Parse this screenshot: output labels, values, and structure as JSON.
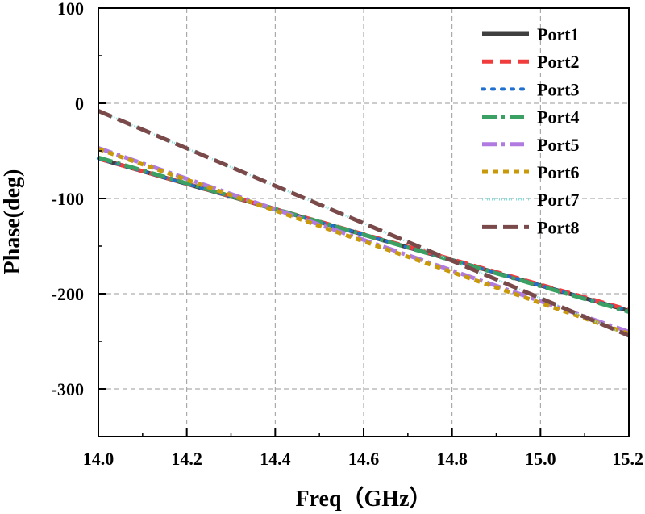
{
  "chart_data": {
    "type": "line",
    "title": "",
    "xlabel": "Freq（GHz）",
    "ylabel": "Phase(deg)",
    "xlim": [
      14.0,
      15.2
    ],
    "ylim": [
      -350,
      100
    ],
    "xticks": [
      14.0,
      14.2,
      14.4,
      14.6,
      14.8,
      15.0,
      15.2
    ],
    "xtick_labels": [
      "14.0",
      "14.2",
      "14.4",
      "14.6",
      "14.8",
      "15.0",
      "15.2"
    ],
    "yticks": [
      100,
      0,
      -100,
      -200,
      -300
    ],
    "ytick_labels": [
      "100",
      "0",
      "-100",
      "-200",
      "-300"
    ],
    "grid": true,
    "legend_position": "top-right",
    "series": [
      {
        "name": "Port1",
        "color": "#404040",
        "dash": "solid",
        "x": [
          14.0,
          15.2
        ],
        "y": [
          -58,
          -218
        ]
      },
      {
        "name": "Port2",
        "color": "#f03c3c",
        "dash": "dash",
        "x": [
          14.0,
          15.2
        ],
        "y": [
          -58,
          -217
        ]
      },
      {
        "name": "Port3",
        "color": "#1f6fd0",
        "dash": "dot",
        "x": [
          14.0,
          15.2
        ],
        "y": [
          -58,
          -218
        ]
      },
      {
        "name": "Port4",
        "color": "#3aa064",
        "dash": "dashdot",
        "x": [
          14.0,
          15.2
        ],
        "y": [
          -57,
          -219
        ]
      },
      {
        "name": "Port5",
        "color": "#b07ae0",
        "dash": "dashdot",
        "x": [
          14.0,
          15.2
        ],
        "y": [
          -47,
          -240
        ]
      },
      {
        "name": "Port6",
        "color": "#c89a0a",
        "dash": "shortdash",
        "x": [
          14.0,
          15.2
        ],
        "y": [
          -48,
          -242
        ]
      },
      {
        "name": "Port7",
        "color": "#7ee0dc",
        "dash": "finedot",
        "x": [
          14.0,
          15.2
        ],
        "y": [
          -8,
          -244
        ]
      },
      {
        "name": "Port8",
        "color": "#7a4a4a",
        "dash": "longdash",
        "x": [
          14.0,
          15.2
        ],
        "y": [
          -8,
          -244
        ]
      }
    ]
  }
}
